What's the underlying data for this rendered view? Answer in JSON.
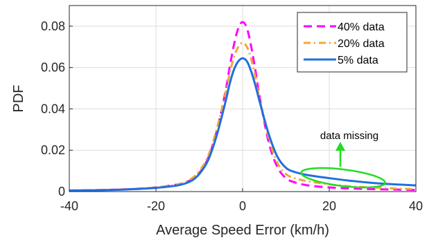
{
  "chart_data": {
    "type": "line",
    "title": "",
    "xlabel": "Average Speed Error (km/h)",
    "ylabel": "PDF",
    "xlim": [
      -40,
      40
    ],
    "ylim": [
      0,
      0.09
    ],
    "x_ticks": [
      -40,
      -20,
      0,
      20,
      40
    ],
    "x_tick_labels": [
      "-40",
      "-20",
      "0",
      "20",
      "40"
    ],
    "y_ticks": [
      0,
      0.02,
      0.04,
      0.06,
      0.08
    ],
    "y_tick_labels": [
      "0",
      "0.02",
      "0.04",
      "0.06",
      "0.08"
    ],
    "grid": true,
    "legend_position": "top-right",
    "series": [
      {
        "name": "40% data",
        "color": "#ff00ff",
        "dash": "dashed",
        "x": [
          -40,
          -30,
          -25,
          -20,
          -15,
          -12,
          -10,
          -8,
          -6,
          -4,
          -3,
          -2,
          -1,
          0,
          1,
          2,
          3,
          4,
          6,
          8,
          10,
          12,
          15,
          20,
          25,
          30,
          35,
          40
        ],
        "y": [
          0.0005,
          0.0009,
          0.0013,
          0.002,
          0.0035,
          0.0055,
          0.009,
          0.016,
          0.029,
          0.048,
          0.06,
          0.071,
          0.079,
          0.082,
          0.079,
          0.07,
          0.058,
          0.045,
          0.024,
          0.012,
          0.0065,
          0.0045,
          0.003,
          0.002,
          0.0015,
          0.0012,
          0.001,
          0.0008
        ]
      },
      {
        "name": "20% data",
        "color": "#f0a830",
        "dash": "dashdot",
        "x": [
          -40,
          -30,
          -25,
          -20,
          -15,
          -12,
          -10,
          -8,
          -6,
          -4,
          -3,
          -2,
          -1,
          0,
          1,
          2,
          3,
          4,
          6,
          8,
          10,
          12,
          15,
          20,
          25,
          30,
          35,
          40
        ],
        "y": [
          0.0005,
          0.0009,
          0.0013,
          0.002,
          0.0035,
          0.006,
          0.01,
          0.017,
          0.03,
          0.047,
          0.057,
          0.065,
          0.07,
          0.072,
          0.07,
          0.064,
          0.055,
          0.044,
          0.026,
          0.014,
          0.0085,
          0.0065,
          0.005,
          0.0035,
          0.0025,
          0.002,
          0.0015,
          0.0012
        ]
      },
      {
        "name": "5% data",
        "color": "#1f6fe0",
        "dash": "solid",
        "x": [
          -40,
          -30,
          -25,
          -20,
          -15,
          -12,
          -10,
          -8,
          -6,
          -4,
          -3,
          -2,
          -1,
          0,
          1,
          2,
          3,
          4,
          6,
          8,
          10,
          12,
          15,
          20,
          25,
          30,
          35,
          40
        ],
        "y": [
          0.0005,
          0.0008,
          0.0012,
          0.0018,
          0.003,
          0.005,
          0.0085,
          0.015,
          0.027,
          0.043,
          0.052,
          0.059,
          0.063,
          0.0645,
          0.063,
          0.058,
          0.051,
          0.043,
          0.028,
          0.017,
          0.0115,
          0.0095,
          0.008,
          0.0065,
          0.0052,
          0.0042,
          0.0035,
          0.003
        ]
      }
    ],
    "annotation": {
      "text": "data missing",
      "color": "#22dd22"
    }
  }
}
